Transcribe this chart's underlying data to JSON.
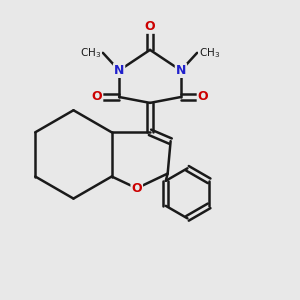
{
  "bg_color": "#e8e8e8",
  "bond_color": "#1a1a1a",
  "N_color": "#2020cc",
  "O_color": "#cc0000",
  "bond_width": 1.8,
  "figsize": [
    3.0,
    3.0
  ],
  "dpi": 100,
  "xlim": [
    0,
    10
  ],
  "ylim": [
    0,
    10
  ]
}
